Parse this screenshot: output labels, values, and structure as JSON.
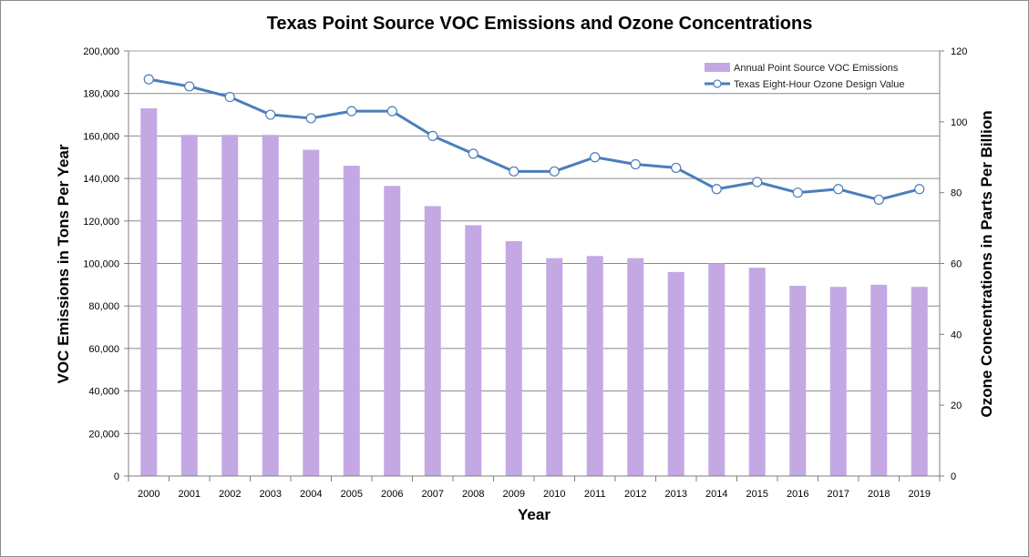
{
  "chart_data": {
    "type": "bar",
    "title": "Texas Point Source VOC Emissions and Ozone Concentrations",
    "xlabel": "Year",
    "ylabel": "VOC Emissions in Tons Per Year",
    "y2label": "Ozone Concentrations in Parts Per Billion",
    "categories": [
      "2000",
      "2001",
      "2002",
      "2003",
      "2004",
      "2005",
      "2006",
      "2007",
      "2008",
      "2009",
      "2010",
      "2011",
      "2012",
      "2013",
      "2014",
      "2015",
      "2016",
      "2017",
      "2018",
      "2019"
    ],
    "ylim": [
      0,
      200000
    ],
    "y2lim": [
      0,
      120
    ],
    "y_ticks": [
      "0",
      "20,000",
      "40,000",
      "60,000",
      "80,000",
      "100,000",
      "120,000",
      "140,000",
      "160,000",
      "180,000",
      "200,000"
    ],
    "y2_ticks": [
      "0",
      "20",
      "40",
      "60",
      "80",
      "100",
      "120"
    ],
    "grid": true,
    "legend_position": "top-right",
    "series": [
      {
        "name": "Annual Point Source VOC Emissions",
        "type": "bar",
        "axis": "left",
        "color": "#c3a8e4",
        "values": [
          173000,
          160500,
          160500,
          160500,
          153500,
          146000,
          136500,
          127000,
          118000,
          110500,
          102500,
          103500,
          102500,
          96000,
          100000,
          98000,
          89500,
          89000,
          90000,
          89000
        ]
      },
      {
        "name": "Texas Eight-Hour Ozone Design Value",
        "type": "line",
        "axis": "right",
        "color": "#4a7ebb",
        "values": [
          112,
          110,
          107,
          102,
          101,
          103,
          103,
          96,
          91,
          86,
          86,
          90,
          88,
          87,
          81,
          83,
          80,
          81,
          78,
          81
        ]
      }
    ]
  }
}
